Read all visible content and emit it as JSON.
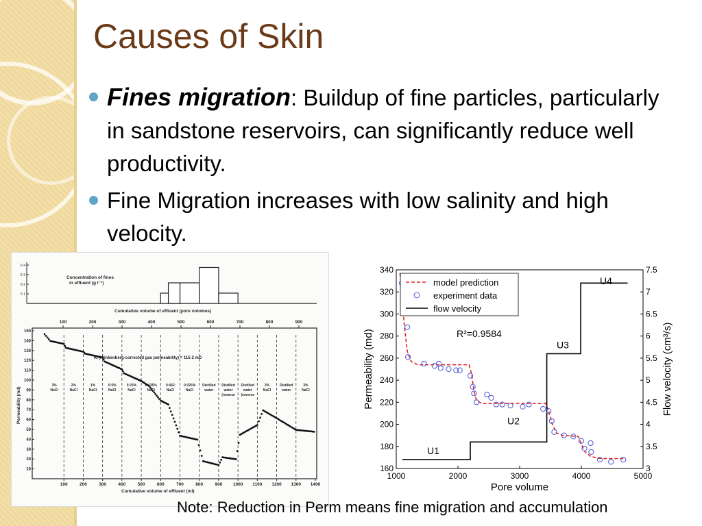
{
  "slide": {
    "title": "Causes of Skin",
    "bullets": [
      {
        "emphasis": "Fines migration",
        "text": ": Buildup of fine particles, particularly in sandstone reservoirs, can significantly reduce well productivity."
      },
      {
        "emphasis": "",
        "text": "Fine Migration increases with low salinity and high velocity."
      }
    ],
    "note": "Note: Reduction in Perm means fine migration and accumulation",
    "colors": {
      "title": "#6b3a18",
      "bullet": "#5fa5c6",
      "band": "#f2dfa9"
    }
  },
  "left_figure": {
    "top_panel_label_1": "Concentration of fines",
    "top_panel_label_2": "in effluent  (g l⁻¹)",
    "top_axis_title": "Cumulative volume of effluent  (pore volumes)",
    "top_axis_ticks": [
      "100",
      "200",
      "300",
      "400",
      "500",
      "600",
      "700",
      "800",
      "900"
    ],
    "bottom_axis_title": "Cumulative volume of effluent  (ml)",
    "bottom_axis_ticks": [
      "100",
      "200",
      "300",
      "400",
      "500",
      "600",
      "700",
      "800",
      "900",
      "1000",
      "1100",
      "1200",
      "1300",
      "1400"
    ],
    "y_axis_title": "Permeability (md)",
    "y_ticks": [
      "150",
      "140",
      "130",
      "120",
      "110",
      "100",
      "90",
      "80",
      "70",
      "60",
      "50",
      "40",
      "30",
      "20",
      "10"
    ],
    "top_y_ticks": [
      "0·4",
      "0·3",
      "0·2",
      "0·1"
    ],
    "annotation": "Kₗ (Klinkenberg-corrected gas permeability) = 115·2 mD",
    "segments": [
      "3% NaCl",
      "2% NaCl",
      "1% NaCl",
      "0·5% NaCl",
      "0·25% NaCl",
      "0·125% NaCl",
      "0·062 NaCl",
      "0·025% NaCl",
      "Distilled water",
      "Distilled water (reverse flow)",
      "Distilled water (reverse flow)",
      "3% NaCl",
      "Distilled water",
      "3% NaCl"
    ]
  },
  "chart_data": {
    "type": "scatter",
    "xlabel": "Pore volume",
    "ylabel": "Permeability (md)",
    "y2label": "Flow velocity (cm³/s)",
    "xlim": [
      1000,
      5000
    ],
    "ylim": [
      160,
      340
    ],
    "y2lim": [
      3,
      7.5
    ],
    "xticks": [
      1000,
      2000,
      3000,
      4000,
      5000
    ],
    "yticks": [
      160,
      180,
      200,
      220,
      240,
      260,
      280,
      300,
      320,
      340
    ],
    "y2ticks": [
      3,
      3.5,
      4,
      4.5,
      5,
      5.5,
      6,
      6.5,
      7,
      7.5
    ],
    "annotation": "R²=0.9584",
    "stage_labels": [
      {
        "label": "U1",
        "x": 1600,
        "y": 173
      },
      {
        "label": "U2",
        "x": 2900,
        "y": 200
      },
      {
        "label": "U3",
        "x": 3700,
        "y": 269
      },
      {
        "label": "U4",
        "x": 4400,
        "y": 327
      }
    ],
    "legend": [
      "model prediction",
      "experiment data",
      "flow velocity"
    ],
    "legend_position": "top-left",
    "series": [
      {
        "name": "experiment data",
        "marker": "circle",
        "color": "#4a56d8",
        "points": [
          [
            1090,
            328
          ],
          [
            1110,
            321
          ],
          [
            1120,
            313
          ],
          [
            1180,
            288
          ],
          [
            1190,
            261
          ],
          [
            1450,
            255
          ],
          [
            1620,
            253
          ],
          [
            1690,
            255
          ],
          [
            1720,
            251
          ],
          [
            1850,
            250
          ],
          [
            1970,
            249
          ],
          [
            2030,
            249
          ],
          [
            2200,
            244
          ],
          [
            2240,
            234
          ],
          [
            2260,
            228
          ],
          [
            2300,
            220
          ],
          [
            2470,
            227
          ],
          [
            2540,
            224
          ],
          [
            2620,
            218
          ],
          [
            2720,
            218
          ],
          [
            2850,
            217
          ],
          [
            3050,
            216
          ],
          [
            3150,
            218
          ],
          [
            3380,
            214
          ],
          [
            3470,
            212
          ],
          [
            3520,
            203
          ],
          [
            3560,
            193
          ],
          [
            3720,
            190
          ],
          [
            3870,
            189
          ],
          [
            4000,
            185
          ],
          [
            4050,
            178
          ],
          [
            4150,
            183
          ],
          [
            4160,
            175
          ],
          [
            4300,
            168
          ],
          [
            4480,
            166
          ],
          [
            4680,
            168
          ]
        ]
      },
      {
        "name": "model prediction",
        "line": "dashed",
        "color": "#e02020",
        "points": [
          [
            1060,
            337
          ],
          [
            1090,
            320
          ],
          [
            1130,
            290
          ],
          [
            1180,
            266
          ],
          [
            1240,
            257
          ],
          [
            1350,
            254
          ],
          [
            2180,
            254
          ],
          [
            2220,
            246
          ],
          [
            2260,
            230
          ],
          [
            2300,
            222
          ],
          [
            2380,
            219
          ],
          [
            3420,
            219
          ],
          [
            3470,
            212
          ],
          [
            3530,
            200
          ],
          [
            3600,
            192
          ],
          [
            3700,
            190
          ],
          [
            3950,
            189
          ],
          [
            4000,
            182
          ],
          [
            4060,
            175
          ],
          [
            4150,
            171
          ],
          [
            4300,
            169
          ],
          [
            4720,
            169
          ]
        ]
      },
      {
        "name": "flow velocity",
        "line": "solid",
        "color": "#000000",
        "axis": "right",
        "points": [
          [
            1100,
            3.2
          ],
          [
            2200,
            3.2
          ],
          [
            2200,
            3.6
          ],
          [
            3440,
            3.6
          ],
          [
            3440,
            5.6
          ],
          [
            3990,
            5.6
          ],
          [
            3990,
            7.2
          ],
          [
            4750,
            7.2
          ]
        ]
      }
    ]
  }
}
